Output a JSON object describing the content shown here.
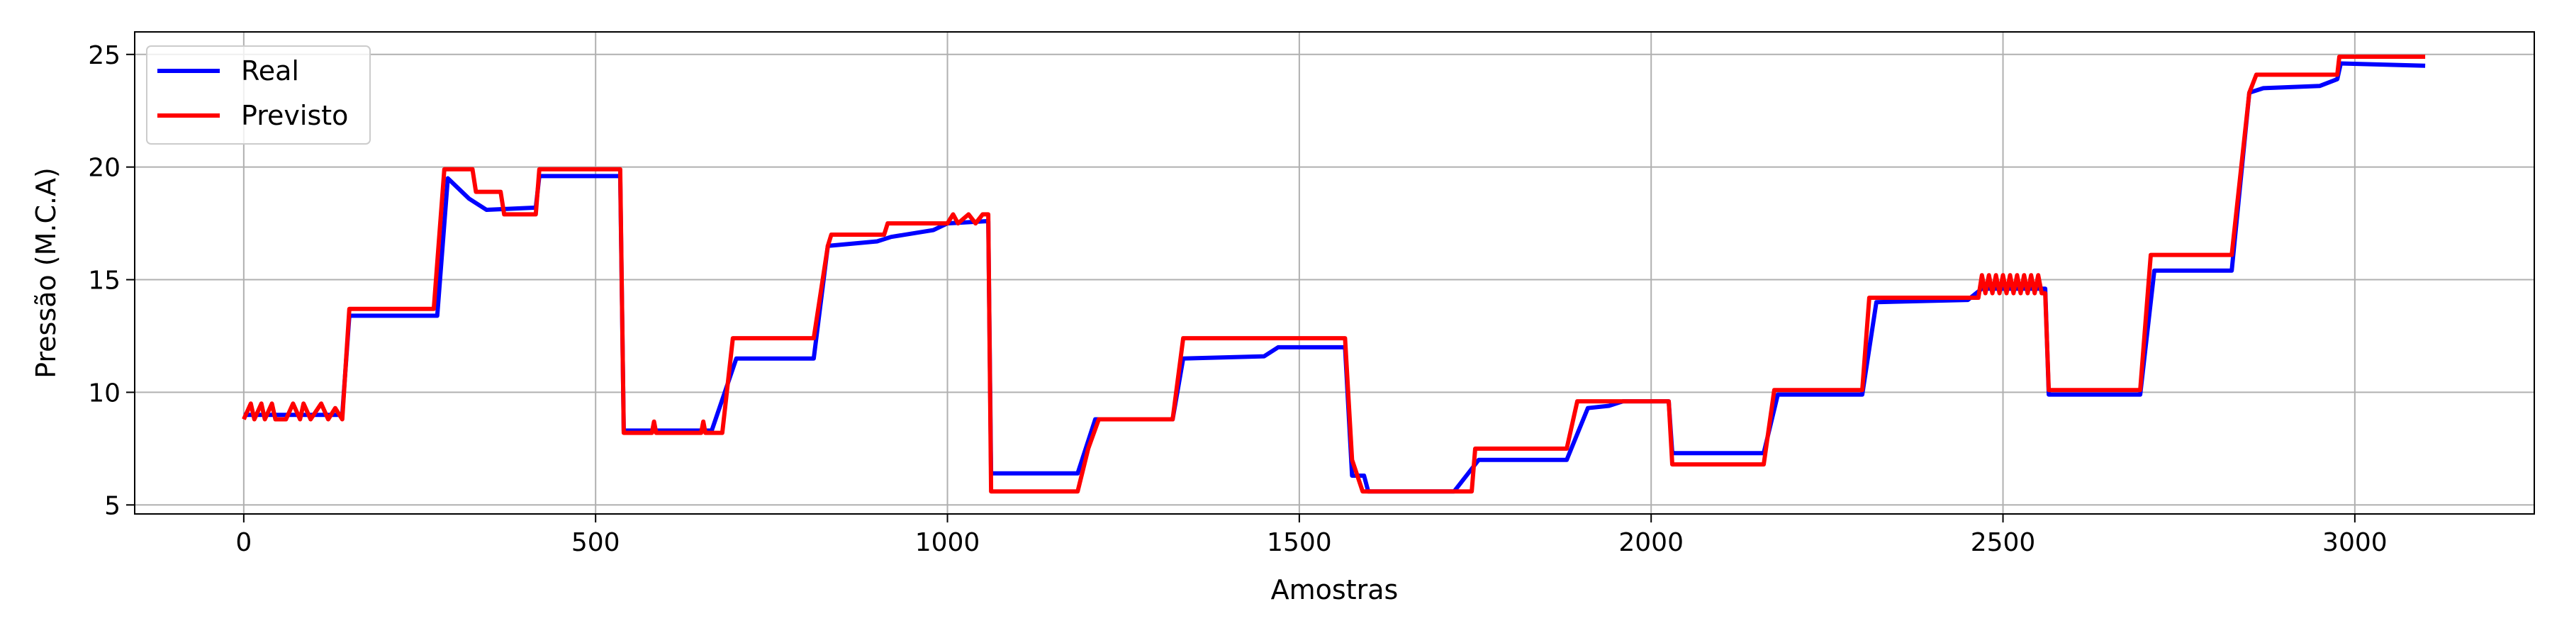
{
  "chart_data": {
    "type": "line",
    "title": "",
    "xlabel": "Amostras",
    "ylabel": "Pressão (M.C.A)",
    "xlim": [
      -155,
      3255
    ],
    "ylim": [
      4.6,
      26
    ],
    "xticks": [
      0,
      500,
      1000,
      1500,
      2000,
      2500,
      3000
    ],
    "yticks": [
      5,
      10,
      15,
      20,
      25
    ],
    "grid": true,
    "legend_position": "upper-left",
    "series": [
      {
        "name": "Real",
        "color": "#0000ff",
        "points": [
          [
            0,
            9.0
          ],
          [
            140,
            9.0
          ],
          [
            150,
            13.4
          ],
          [
            275,
            13.4
          ],
          [
            290,
            19.5
          ],
          [
            320,
            18.6
          ],
          [
            345,
            18.1
          ],
          [
            415,
            18.2
          ],
          [
            420,
            19.6
          ],
          [
            535,
            19.6
          ],
          [
            540,
            8.3
          ],
          [
            665,
            8.3
          ],
          [
            700,
            11.5
          ],
          [
            810,
            11.5
          ],
          [
            830,
            16.5
          ],
          [
            900,
            16.7
          ],
          [
            920,
            16.9
          ],
          [
            980,
            17.2
          ],
          [
            1000,
            17.5
          ],
          [
            1058,
            17.6
          ],
          [
            1062,
            6.4
          ],
          [
            1185,
            6.4
          ],
          [
            1210,
            8.8
          ],
          [
            1320,
            8.8
          ],
          [
            1335,
            11.5
          ],
          [
            1450,
            11.6
          ],
          [
            1470,
            12.0
          ],
          [
            1565,
            12.0
          ],
          [
            1575,
            6.3
          ],
          [
            1592,
            6.3
          ],
          [
            1598,
            5.6
          ],
          [
            1720,
            5.6
          ],
          [
            1755,
            7.0
          ],
          [
            1880,
            7.0
          ],
          [
            1910,
            9.3
          ],
          [
            1940,
            9.4
          ],
          [
            1960,
            9.6
          ],
          [
            2025,
            9.6
          ],
          [
            2030,
            7.3
          ],
          [
            2160,
            7.3
          ],
          [
            2180,
            9.9
          ],
          [
            2300,
            9.9
          ],
          [
            2320,
            14.0
          ],
          [
            2450,
            14.1
          ],
          [
            2470,
            14.6
          ],
          [
            2560,
            14.6
          ],
          [
            2565,
            9.9
          ],
          [
            2695,
            9.9
          ],
          [
            2715,
            15.4
          ],
          [
            2825,
            15.4
          ],
          [
            2850,
            23.3
          ],
          [
            2870,
            23.5
          ],
          [
            2950,
            23.6
          ],
          [
            2975,
            23.9
          ],
          [
            2980,
            24.6
          ],
          [
            3100,
            24.5
          ]
        ]
      },
      {
        "name": "Previsto",
        "color": "#ff0000",
        "points": [
          [
            0,
            8.8
          ],
          [
            10,
            9.5
          ],
          [
            15,
            8.8
          ],
          [
            25,
            9.5
          ],
          [
            30,
            8.8
          ],
          [
            40,
            9.5
          ],
          [
            45,
            8.8
          ],
          [
            60,
            8.8
          ],
          [
            70,
            9.5
          ],
          [
            80,
            8.8
          ],
          [
            85,
            9.5
          ],
          [
            95,
            8.8
          ],
          [
            110,
            9.5
          ],
          [
            120,
            8.8
          ],
          [
            130,
            9.3
          ],
          [
            140,
            8.8
          ],
          [
            150,
            13.7
          ],
          [
            270,
            13.7
          ],
          [
            285,
            19.9
          ],
          [
            325,
            19.9
          ],
          [
            330,
            18.9
          ],
          [
            365,
            18.9
          ],
          [
            370,
            17.9
          ],
          [
            415,
            17.9
          ],
          [
            420,
            19.9
          ],
          [
            535,
            19.9
          ],
          [
            540,
            8.2
          ],
          [
            580,
            8.2
          ],
          [
            583,
            8.7
          ],
          [
            586,
            8.2
          ],
          [
            650,
            8.2
          ],
          [
            653,
            8.7
          ],
          [
            656,
            8.2
          ],
          [
            680,
            8.2
          ],
          [
            695,
            12.4
          ],
          [
            810,
            12.4
          ],
          [
            830,
            16.5
          ],
          [
            835,
            17.0
          ],
          [
            910,
            17.0
          ],
          [
            915,
            17.5
          ],
          [
            1000,
            17.5
          ],
          [
            1008,
            17.9
          ],
          [
            1015,
            17.5
          ],
          [
            1030,
            17.9
          ],
          [
            1040,
            17.5
          ],
          [
            1050,
            17.9
          ],
          [
            1058,
            17.9
          ],
          [
            1062,
            5.6
          ],
          [
            1185,
            5.6
          ],
          [
            1200,
            7.5
          ],
          [
            1215,
            8.8
          ],
          [
            1320,
            8.8
          ],
          [
            1335,
            12.4
          ],
          [
            1565,
            12.4
          ],
          [
            1575,
            7.0
          ],
          [
            1590,
            5.6
          ],
          [
            1745,
            5.6
          ],
          [
            1750,
            7.5
          ],
          [
            1880,
            7.5
          ],
          [
            1895,
            9.6
          ],
          [
            2025,
            9.6
          ],
          [
            2030,
            6.8
          ],
          [
            2160,
            6.8
          ],
          [
            2175,
            10.1
          ],
          [
            2300,
            10.1
          ],
          [
            2310,
            14.2
          ],
          [
            2465,
            14.2
          ],
          [
            2470,
            15.2
          ],
          [
            2475,
            14.4
          ],
          [
            2480,
            15.2
          ],
          [
            2485,
            14.4
          ],
          [
            2490,
            15.2
          ],
          [
            2495,
            14.4
          ],
          [
            2500,
            15.2
          ],
          [
            2505,
            14.4
          ],
          [
            2510,
            15.2
          ],
          [
            2515,
            14.4
          ],
          [
            2520,
            15.2
          ],
          [
            2525,
            14.4
          ],
          [
            2530,
            15.2
          ],
          [
            2535,
            14.4
          ],
          [
            2540,
            15.2
          ],
          [
            2545,
            14.4
          ],
          [
            2550,
            15.2
          ],
          [
            2555,
            14.4
          ],
          [
            2560,
            14.4
          ],
          [
            2565,
            10.1
          ],
          [
            2695,
            10.1
          ],
          [
            2710,
            16.1
          ],
          [
            2825,
            16.1
          ],
          [
            2850,
            23.3
          ],
          [
            2860,
            24.1
          ],
          [
            2975,
            24.1
          ],
          [
            2978,
            24.9
          ],
          [
            3100,
            24.9
          ]
        ]
      }
    ]
  }
}
